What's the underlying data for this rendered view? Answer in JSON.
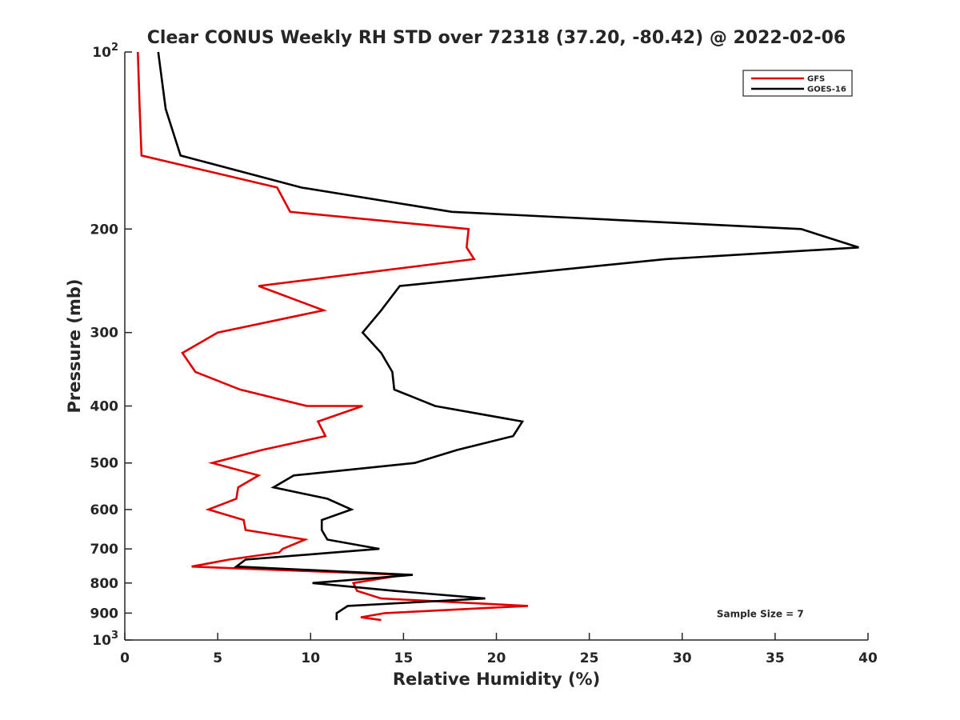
{
  "chart_data": {
    "type": "line",
    "title": "Clear CONUS Weekly RH STD over 72318 (37.20, -80.42) @ 2022-02-06",
    "xlabel": "Relative Humidity (%)",
    "ylabel": "Pressure (mb)",
    "xlim": [
      0,
      40
    ],
    "ylim": [
      100,
      1000
    ],
    "y_scale": "log",
    "y_reversed": true,
    "grid": false,
    "legend_position": "top-right",
    "x_ticks": [
      0,
      5,
      10,
      15,
      20,
      25,
      30,
      35,
      40
    ],
    "y_ticks": [
      {
        "value": 100,
        "label": "10",
        "sup": "2"
      },
      {
        "value": 200,
        "label": "200"
      },
      {
        "value": 300,
        "label": "300"
      },
      {
        "value": 400,
        "label": "400"
      },
      {
        "value": 500,
        "label": "500"
      },
      {
        "value": 600,
        "label": "600"
      },
      {
        "value": 700,
        "label": "700"
      },
      {
        "value": 800,
        "label": "800"
      },
      {
        "value": 900,
        "label": "900"
      },
      {
        "value": 1000,
        "label": "10",
        "sup": "3"
      }
    ],
    "annotation": "Sample Size = 7",
    "series": [
      {
        "name": "GFS",
        "color": "#e00000",
        "points": [
          {
            "x": 0.7,
            "y": 100
          },
          {
            "x": 0.8,
            "y": 125
          },
          {
            "x": 0.9,
            "y": 150
          },
          {
            "x": 8.2,
            "y": 170
          },
          {
            "x": 8.9,
            "y": 187
          },
          {
            "x": 18.5,
            "y": 200
          },
          {
            "x": 18.4,
            "y": 215
          },
          {
            "x": 18.8,
            "y": 225
          },
          {
            "x": 7.2,
            "y": 250
          },
          {
            "x": 10.7,
            "y": 275
          },
          {
            "x": 5.0,
            "y": 300
          },
          {
            "x": 3.1,
            "y": 325
          },
          {
            "x": 3.8,
            "y": 350
          },
          {
            "x": 6.2,
            "y": 375
          },
          {
            "x": 9.8,
            "y": 400
          },
          {
            "x": 12.8,
            "y": 400
          },
          {
            "x": 10.4,
            "y": 425
          },
          {
            "x": 10.8,
            "y": 450
          },
          {
            "x": 7.4,
            "y": 475
          },
          {
            "x": 4.7,
            "y": 500
          },
          {
            "x": 7.2,
            "y": 525
          },
          {
            "x": 6.1,
            "y": 550
          },
          {
            "x": 6.0,
            "y": 575
          },
          {
            "x": 4.5,
            "y": 600
          },
          {
            "x": 6.4,
            "y": 625
          },
          {
            "x": 6.5,
            "y": 650
          },
          {
            "x": 9.7,
            "y": 675
          },
          {
            "x": 8.5,
            "y": 700
          },
          {
            "x": 8.3,
            "y": 710
          },
          {
            "x": 5.6,
            "y": 730
          },
          {
            "x": 3.6,
            "y": 750
          },
          {
            "x": 15.0,
            "y": 775
          },
          {
            "x": 12.3,
            "y": 800
          },
          {
            "x": 12.5,
            "y": 825
          },
          {
            "x": 13.8,
            "y": 850
          },
          {
            "x": 21.7,
            "y": 875
          },
          {
            "x": 14.0,
            "y": 900
          },
          {
            "x": 12.7,
            "y": 915
          },
          {
            "x": 13.8,
            "y": 925
          }
        ]
      },
      {
        "name": "GOES-16",
        "color": "#000000",
        "points": [
          {
            "x": 1.8,
            "y": 100
          },
          {
            "x": 2.2,
            "y": 125
          },
          {
            "x": 3.0,
            "y": 150
          },
          {
            "x": 9.5,
            "y": 170
          },
          {
            "x": 17.6,
            "y": 187
          },
          {
            "x": 36.4,
            "y": 200
          },
          {
            "x": 39.5,
            "y": 215
          },
          {
            "x": 29.1,
            "y": 225
          },
          {
            "x": 14.8,
            "y": 250
          },
          {
            "x": 13.8,
            "y": 275
          },
          {
            "x": 12.8,
            "y": 300
          },
          {
            "x": 13.8,
            "y": 325
          },
          {
            "x": 14.4,
            "y": 350
          },
          {
            "x": 14.5,
            "y": 375
          },
          {
            "x": 16.7,
            "y": 400
          },
          {
            "x": 21.4,
            "y": 425
          },
          {
            "x": 20.9,
            "y": 450
          },
          {
            "x": 17.9,
            "y": 475
          },
          {
            "x": 15.6,
            "y": 500
          },
          {
            "x": 9.1,
            "y": 525
          },
          {
            "x": 8.0,
            "y": 550
          },
          {
            "x": 10.9,
            "y": 575
          },
          {
            "x": 12.2,
            "y": 600
          },
          {
            "x": 10.6,
            "y": 625
          },
          {
            "x": 10.6,
            "y": 650
          },
          {
            "x": 10.9,
            "y": 675
          },
          {
            "x": 13.7,
            "y": 700
          },
          {
            "x": 11.2,
            "y": 710
          },
          {
            "x": 6.5,
            "y": 730
          },
          {
            "x": 6.0,
            "y": 750
          },
          {
            "x": 15.5,
            "y": 775
          },
          {
            "x": 10.1,
            "y": 800
          },
          {
            "x": 14.5,
            "y": 825
          },
          {
            "x": 19.4,
            "y": 850
          },
          {
            "x": 12.0,
            "y": 875
          },
          {
            "x": 11.4,
            "y": 900
          },
          {
            "x": 11.4,
            "y": 925
          }
        ]
      }
    ]
  }
}
